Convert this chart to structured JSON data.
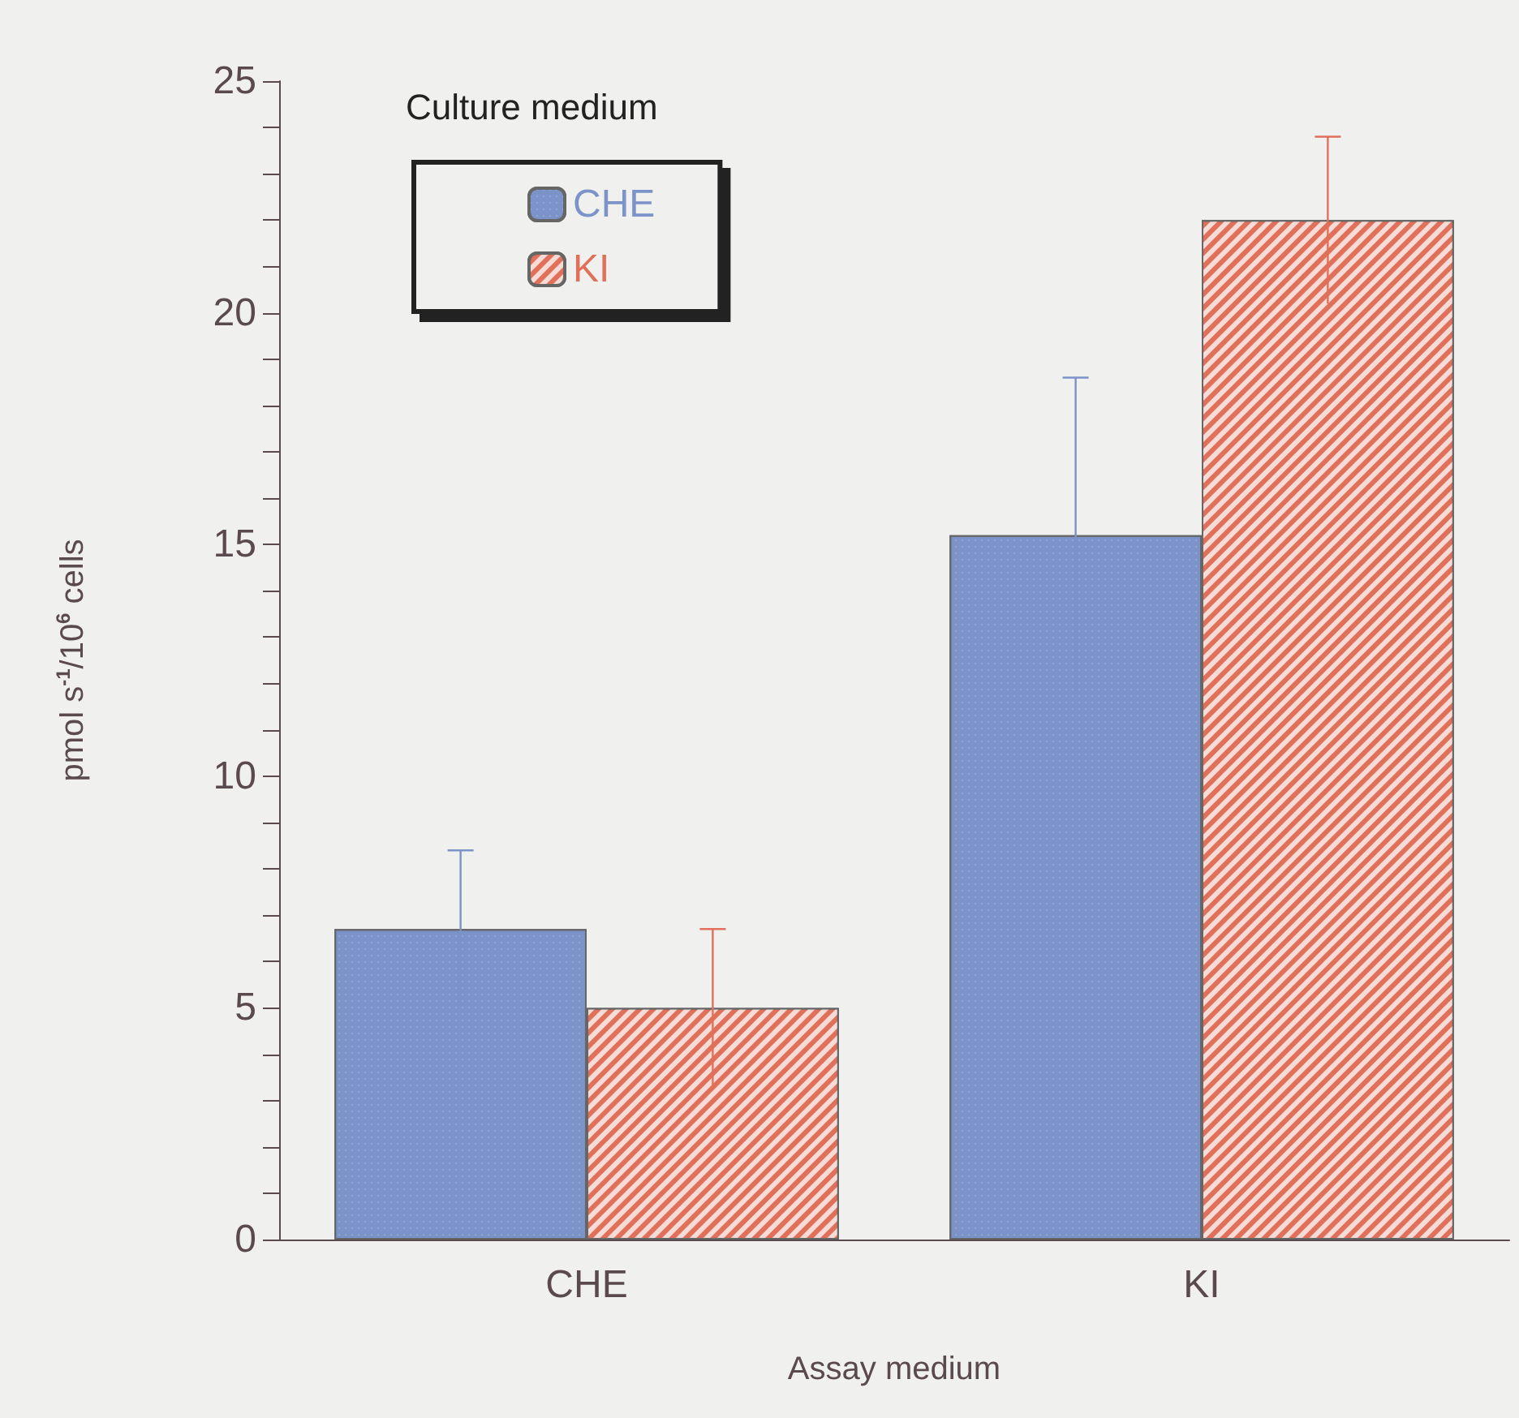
{
  "chart_data": {
    "type": "bar",
    "xlabel": "Assay medium",
    "ylabel": "pmol s$^{-1}$/10$^{6}$ cells",
    "legend_title": "Culture medium",
    "legend": "top left",
    "categories": [
      "CHE",
      "KI"
    ],
    "series": [
      {
        "name": "CHE",
        "color": "#7b93c9",
        "values": [
          6.7,
          15.2
        ],
        "errors": [
          1.7,
          3.4
        ]
      },
      {
        "name": "KI",
        "color": "#e0705a",
        "values": [
          5.0,
          22.0
        ],
        "errors": [
          1.7,
          1.8
        ]
      }
    ],
    "ylim": [
      0,
      25
    ],
    "yticks": [
      0,
      {
        "value": 1,
        "label": null
      },
      {
        "value": 2,
        "label": null
      },
      {
        "value": 3,
        "label": null
      },
      {
        "value": 4,
        "label": null
      },
      5,
      {
        "value": 6,
        "label": null
      },
      {
        "value": 7,
        "label": null
      },
      {
        "value": 8,
        "label": null
      },
      {
        "value": 9,
        "label": null
      },
      10,
      {
        "value": 11,
        "label": null
      },
      {
        "value": 12,
        "label": null
      },
      {
        "value": 13,
        "label": null
      },
      {
        "value": 14,
        "label": null
      },
      15,
      {
        "value": 16,
        "label": null
      },
      {
        "value": 17,
        "label": null
      },
      {
        "value": 18,
        "label": null
      },
      {
        "value": 19,
        "label": null
      },
      20,
      {
        "value": 21,
        "label": null
      },
      {
        "value": 22,
        "label": null
      },
      {
        "value": 23,
        "label": null
      },
      {
        "value": 24,
        "label": null
      },
      25
    ],
    "grid": false
  }
}
